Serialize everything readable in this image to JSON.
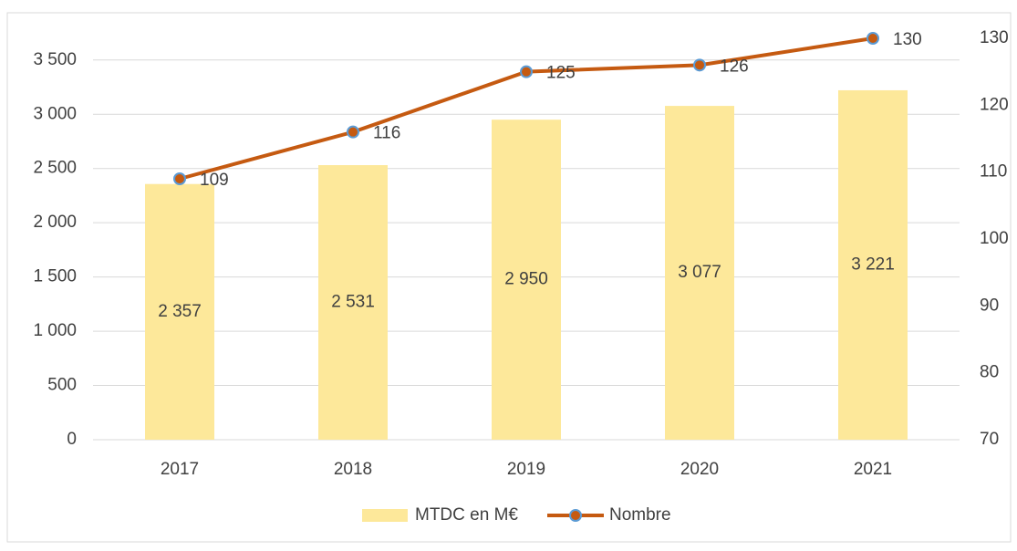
{
  "chart_data": {
    "type": "bar",
    "categories": [
      "2017",
      "2018",
      "2019",
      "2020",
      "2021"
    ],
    "series": [
      {
        "name": "MTDC en M€",
        "type": "bar",
        "color": "#fde89a",
        "values": [
          2357,
          2531,
          2950,
          3077,
          3221
        ],
        "value_labels": [
          "2 357",
          "2 531",
          "2 950",
          "3 077",
          "3 221"
        ]
      },
      {
        "name": "Nombre",
        "type": "line",
        "axis": "y2",
        "color": "#c55a11",
        "marker_color": "#5b9bd5",
        "values": [
          109,
          116,
          125,
          126,
          130
        ]
      }
    ],
    "ylim": [
      0,
      3700
    ],
    "yticks": [
      0,
      500,
      {
        "value": 1000,
        "label": "1 000"
      },
      {
        "value": 1500,
        "label": "1 500"
      },
      {
        "value": 2000,
        "label": "2 000"
      },
      {
        "value": 2500,
        "label": "2 500"
      },
      {
        "value": 3000,
        "label": "3 000"
      },
      {
        "value": 3500,
        "label": "3 500"
      }
    ],
    "y2lim": [
      70,
      130
    ],
    "y2ticks": [
      70,
      80,
      90,
      100,
      110,
      120,
      130
    ],
    "grid": true,
    "legend": "bottom"
  }
}
